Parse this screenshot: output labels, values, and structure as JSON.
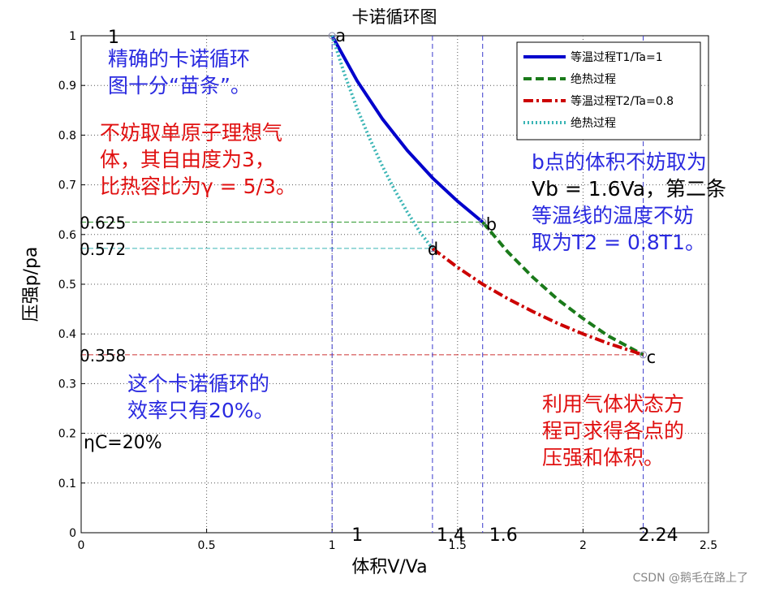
{
  "chart_data": {
    "type": "line",
    "title": "卡诺循环图",
    "xlabel": "体积V/Va",
    "ylabel": "压强p/pa",
    "xlim": [
      0,
      2.5
    ],
    "ylim": [
      0,
      1
    ],
    "xticks": [
      0,
      0.5,
      1,
      1.5,
      2,
      2.5
    ],
    "yticks": [
      0,
      0.1,
      0.2,
      0.3,
      0.4,
      0.5,
      0.6,
      0.7,
      0.8,
      0.9,
      1
    ],
    "grid": true,
    "legend_position": "top-right",
    "series": [
      {
        "name": "等温过程T1/Ta=1",
        "color": "#0000cc",
        "style": "solid",
        "x": [
          1.0,
          1.1,
          1.2,
          1.3,
          1.4,
          1.5,
          1.6
        ],
        "y": [
          1.0,
          0.909,
          0.833,
          0.769,
          0.714,
          0.667,
          0.625
        ]
      },
      {
        "name": "绝热过程",
        "color": "#1a7a1a",
        "style": "dashed",
        "x": [
          1.6,
          1.7,
          1.8,
          1.9,
          2.0,
          2.1,
          2.24
        ],
        "y": [
          0.625,
          0.565,
          0.514,
          0.469,
          0.431,
          0.396,
          0.358
        ]
      },
      {
        "name": "等温过程T2/Ta=0.8",
        "color": "#cc0000",
        "style": "dashdot",
        "x": [
          1.4,
          1.5,
          1.6,
          1.7,
          1.8,
          1.9,
          2.0,
          2.1,
          2.24
        ],
        "y": [
          0.572,
          0.534,
          0.5,
          0.471,
          0.445,
          0.421,
          0.4,
          0.381,
          0.358
        ]
      },
      {
        "name": "绝热过程",
        "color": "#3ab5b5",
        "style": "dotted",
        "x": [
          1.0,
          1.05,
          1.1,
          1.15,
          1.2,
          1.25,
          1.3,
          1.35,
          1.4
        ],
        "y": [
          1.0,
          0.922,
          0.853,
          0.793,
          0.738,
          0.689,
          0.645,
          0.605,
          0.572
        ]
      }
    ],
    "points": [
      {
        "label": "a",
        "x": 1.0,
        "y": 1.0
      },
      {
        "label": "b",
        "x": 1.6,
        "y": 0.625
      },
      {
        "label": "c",
        "x": 2.24,
        "y": 0.358
      },
      {
        "label": "d",
        "x": 1.4,
        "y": 0.572
      }
    ],
    "y_markers": [
      {
        "label": "0.625",
        "y": 0.625,
        "to_x": 1.6,
        "color": "#2f9a2f"
      },
      {
        "label": "0.572",
        "y": 0.572,
        "to_x": 1.4,
        "color": "#3ab5b5"
      },
      {
        "label": "0.358",
        "y": 0.358,
        "to_x": 2.24,
        "color": "#cc3333"
      }
    ],
    "x_markers": [
      {
        "label": "1",
        "x": 1.0
      },
      {
        "label": "1.4",
        "x": 1.4
      },
      {
        "label": "1.6",
        "x": 1.6
      },
      {
        "label": "2.24",
        "x": 2.24
      }
    ],
    "top_left_label": "1",
    "efficiency_label": "ηC=20%"
  },
  "annotations": {
    "fine": [
      "精确的卡诺循环",
      "图十分“苗条”。"
    ],
    "gas": [
      "不妨取单原子理想气",
      "体，其自由度为3，",
      "比热容比为γ = 5/3。"
    ],
    "vb": [
      "b点的体积不妨取为",
      "Vb = 1.6Va，第二条",
      "等温线的温度不妨",
      "取为T2 = 0.8T1。"
    ],
    "efficiency": [
      "这个卡诺循环的",
      "效率只有20%。"
    ],
    "method": [
      "利用气体状态方",
      "程可求得各点的",
      "压强和体积。"
    ]
  },
  "watermark": "CSDN @鹅毛在路上了"
}
